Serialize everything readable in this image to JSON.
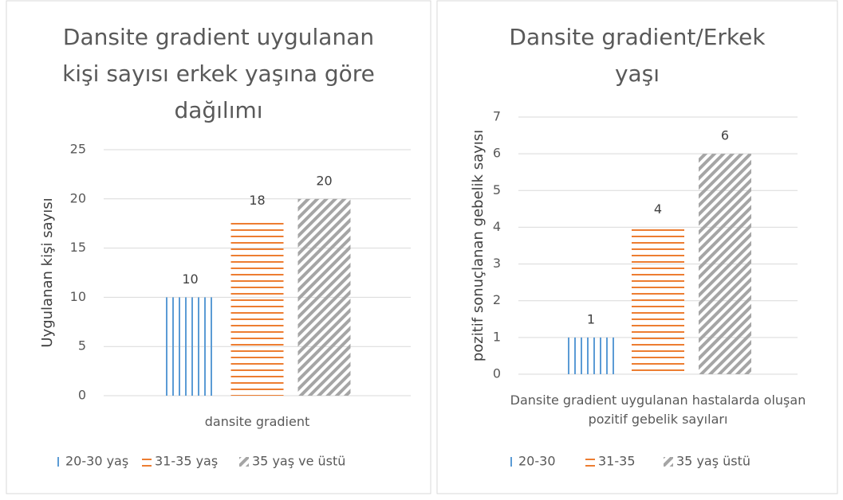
{
  "chart_data": [
    {
      "type": "bar",
      "title": "Dansite gradient uygulanan kişi sayısı erkek yaşına göre dağılımı",
      "y_label": "Uygulanan kişi sayısı",
      "categories": [
        "dansite gradient"
      ],
      "series": [
        {
          "name": "20-30 yaş",
          "color": "#5b9bd5",
          "pattern": "vertical",
          "values": [
            10
          ]
        },
        {
          "name": "31-35 yaş",
          "color": "#ed7d31",
          "pattern": "horizontal",
          "values": [
            18
          ]
        },
        {
          "name": "35 yaş ve üstü",
          "color": "#a5a5a5",
          "pattern": "diagonal",
          "values": [
            20
          ]
        }
      ],
      "ylim": [
        0,
        25
      ],
      "yticks": [
        0,
        5,
        10,
        15,
        20,
        25
      ],
      "grid": true,
      "legend": "bottom"
    },
    {
      "type": "bar",
      "title": "Dansite gradient/Erkek yaşı",
      "y_label": "pozitif sonuçlanan gebelik sayısı",
      "categories": [
        "Dansite gradient uygulanan hastalarda oluşan pozitif gebelik sayıları"
      ],
      "series": [
        {
          "name": "20-30",
          "color": "#5b9bd5",
          "pattern": "vertical",
          "values": [
            1
          ]
        },
        {
          "name": "31-35",
          "color": "#ed7d31",
          "pattern": "horizontal",
          "values": [
            4
          ]
        },
        {
          "name": "35 yaş üstü",
          "color": "#a5a5a5",
          "pattern": "diagonal",
          "values": [
            6
          ]
        }
      ],
      "ylim": [
        0,
        7
      ],
      "yticks": [
        0,
        1,
        2,
        3,
        4,
        5,
        6,
        7
      ],
      "grid": true,
      "legend": "bottom"
    }
  ]
}
